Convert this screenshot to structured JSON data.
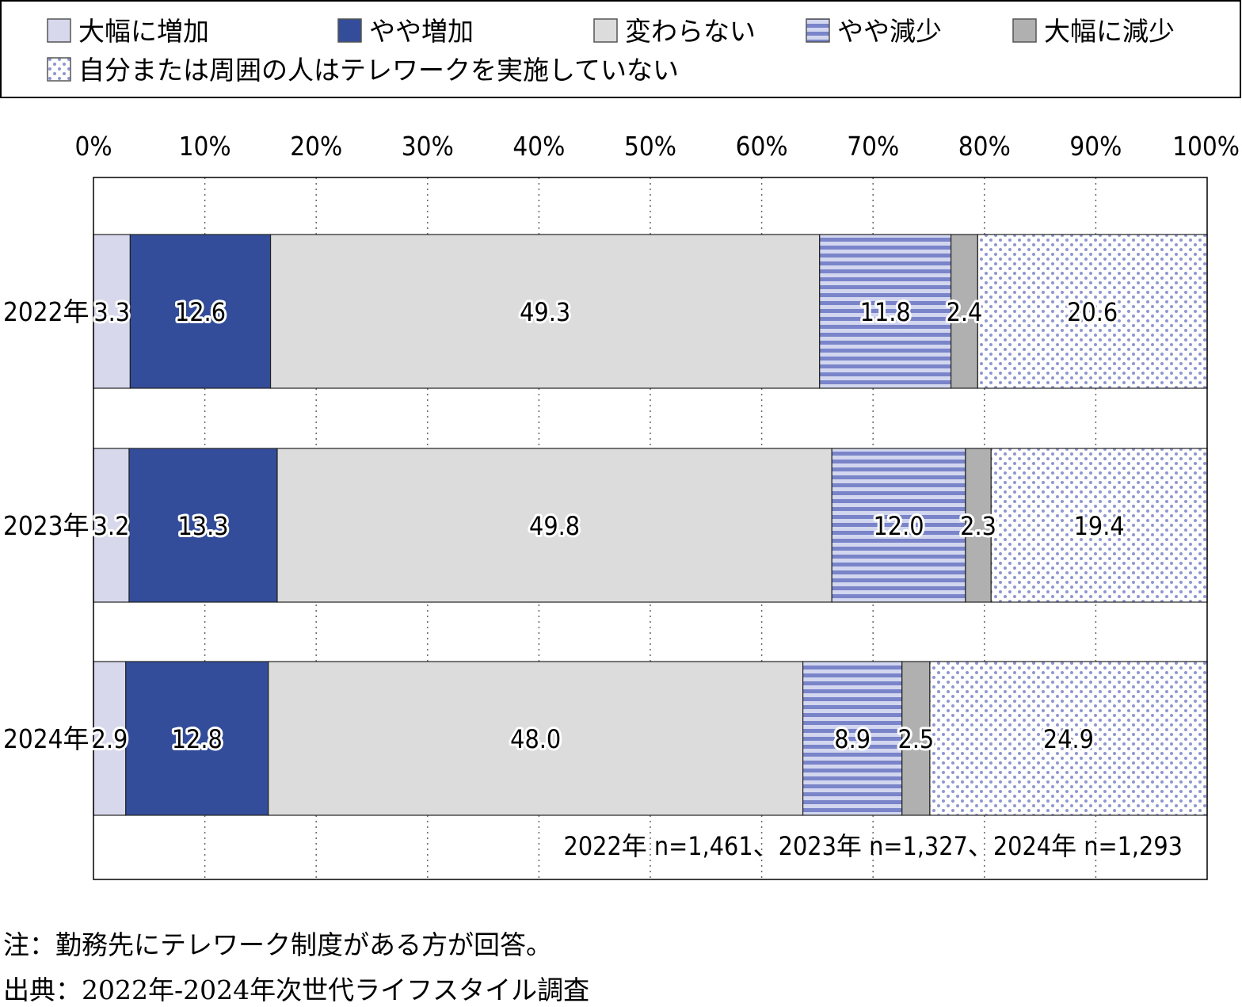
{
  "chart_data": {
    "type": "bar",
    "orientation": "horizontal",
    "stacked": "100%",
    "categories": [
      "2022年",
      "2023年",
      "2024年"
    ],
    "series": [
      {
        "name": "大幅に増加",
        "values": [
          3.3,
          3.2,
          2.9
        ],
        "color": "#d7d8ec",
        "pattern": "solid"
      },
      {
        "name": "やや増加",
        "values": [
          12.6,
          13.3,
          12.8
        ],
        "color": "#334d9b",
        "pattern": "solid"
      },
      {
        "name": "変わらない",
        "values": [
          49.3,
          49.8,
          48.0
        ],
        "color": "#dcdcdc",
        "pattern": "solid"
      },
      {
        "name": "やや減少",
        "values": [
          11.8,
          12.0,
          8.9
        ],
        "color": "#7a84c8",
        "pattern": "stripes"
      },
      {
        "name": "大幅に減少",
        "values": [
          2.4,
          2.3,
          2.5
        ],
        "color": "#b0b0b0",
        "pattern": "solid"
      },
      {
        "name": "自分または周囲の人はテレワークを実施していない",
        "values": [
          20.6,
          19.4,
          24.9
        ],
        "color": "#8f97d0",
        "pattern": "dots"
      }
    ],
    "xlim": [
      0,
      100
    ],
    "xticks": [
      "0%",
      "10%",
      "20%",
      "30%",
      "40%",
      "50%",
      "60%",
      "70%",
      "80%",
      "90%",
      "100%"
    ],
    "grid": "vertical dotted",
    "legend": "top, boxed",
    "sample_note": "2022年 n=1,461、2023年 n=1,327、2024年 n=1,293"
  },
  "notes": {
    "note": "注：勤務先にテレワーク制度がある方が回答。",
    "source": "出典：2022年-2024年次世代ライフスタイル調査"
  }
}
